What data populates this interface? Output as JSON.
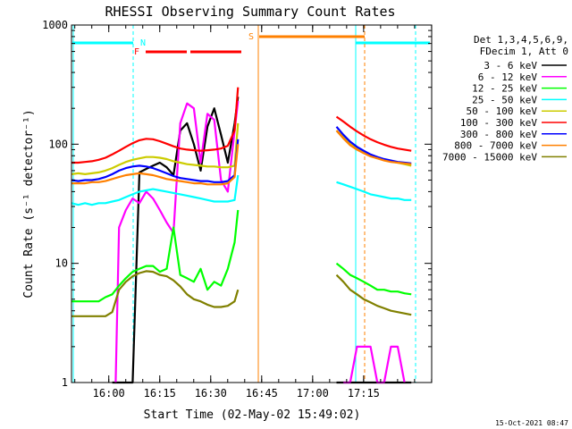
{
  "chart_data": {
    "type": "line",
    "title": "RHESSI Observing Summary Count Rates",
    "xlabel": "Start Time (02-May-02 15:49:02)",
    "ylabel": "Count Rate (s⁻¹ detector⁻¹)",
    "yscale": "log",
    "ylim": [
      1,
      1000
    ],
    "xlim_minutes_after_start": [
      0,
      106
    ],
    "x_tick_labels": [
      "16:00",
      "16:15",
      "16:30",
      "16:45",
      "17:00",
      "17:15"
    ],
    "x_ticks_minutes": [
      10.97,
      25.97,
      40.97,
      55.97,
      70.97,
      85.97
    ],
    "y_tick_labels": [
      "1",
      "10",
      "100",
      "1000"
    ],
    "y_ticks": [
      1,
      10,
      100,
      1000
    ],
    "legend": {
      "placement": "right",
      "header": [
        "Det 1,3,4,5,6,9,",
        "FDecim 1, Att 0"
      ],
      "entries": [
        {
          "label": "3 - 6 keV",
          "color": "#000000"
        },
        {
          "label": "6 - 12 keV",
          "color": "#ff00ff"
        },
        {
          "label": "12 - 25 keV",
          "color": "#00ff00"
        },
        {
          "label": "25 - 50 keV",
          "color": "#00ffff"
        },
        {
          "label": "50 - 100 keV",
          "color": "#cccc00"
        },
        {
          "label": "100 - 300 keV",
          "color": "#ff0000"
        },
        {
          "label": "300 - 800 keV",
          "color": "#0000ff"
        },
        {
          "label": "800 - 7000 keV",
          "color": "#ff8000"
        },
        {
          "label": "7000 - 15000 keV",
          "color": "#808000"
        }
      ]
    },
    "annotations": [
      {
        "text": "N",
        "color": "#00ffff"
      },
      {
        "text": "F",
        "color": "#ff0000"
      },
      {
        "text": "S",
        "color": "#ff8000"
      }
    ],
    "footer_date": "15-Oct-2021 08:47",
    "data_gaps_minutes": [
      [
        49,
        78
      ]
    ],
    "series": [
      {
        "name": "3 - 6 keV",
        "x": [
          12,
          14,
          16,
          18,
          20,
          22,
          24,
          26,
          28,
          30,
          32,
          34,
          36,
          38,
          40,
          42,
          44,
          46,
          48,
          49,
          78,
          80,
          82,
          84,
          86,
          88,
          90,
          92,
          94,
          96,
          98,
          100
        ],
        "y": [
          1,
          1,
          1,
          1,
          58,
          62,
          66,
          70,
          64,
          55,
          130,
          150,
          100,
          60,
          140,
          200,
          120,
          70,
          150,
          250,
          1,
          1,
          1,
          1,
          1,
          1,
          1,
          1,
          1,
          1,
          1,
          1
        ]
      },
      {
        "name": "6 - 12 keV",
        "x": [
          13,
          14,
          16,
          18,
          20,
          22,
          24,
          26,
          28,
          30,
          32,
          34,
          36,
          38,
          40,
          42,
          44,
          46,
          48,
          49,
          80,
          82,
          84,
          86,
          88,
          90,
          92,
          94,
          96,
          98
        ],
        "y": [
          1,
          20,
          28,
          35,
          32,
          40,
          35,
          28,
          22,
          18,
          150,
          220,
          200,
          70,
          180,
          160,
          50,
          40,
          130,
          230,
          1,
          1,
          2,
          2,
          2,
          1,
          1,
          2,
          2,
          1
        ]
      },
      {
        "name": "12 - 25 keV",
        "x": [
          0,
          2,
          4,
          6,
          8,
          10,
          12,
          14,
          16,
          18,
          20,
          22,
          24,
          26,
          28,
          30,
          32,
          34,
          36,
          38,
          40,
          42,
          44,
          46,
          48,
          49,
          78,
          80,
          82,
          84,
          86,
          88,
          90,
          92,
          94,
          96,
          98,
          100
        ],
        "y": [
          4.8,
          4.8,
          4.8,
          4.8,
          4.8,
          5.2,
          5.5,
          6.5,
          7.5,
          8.5,
          9,
          9.5,
          9.5,
          8.5,
          9,
          20,
          8,
          7.5,
          7,
          9,
          6,
          7,
          6.5,
          9,
          15,
          28,
          10,
          9,
          8,
          7.5,
          7,
          6.5,
          6,
          6,
          5.8,
          5.8,
          5.6,
          5.5
        ]
      },
      {
        "name": "25 - 50 keV",
        "x": [
          0,
          2,
          4,
          6,
          8,
          10,
          12,
          14,
          16,
          18,
          20,
          22,
          24,
          26,
          28,
          30,
          32,
          34,
          36,
          38,
          40,
          42,
          44,
          46,
          48,
          49,
          78,
          80,
          82,
          84,
          86,
          88,
          90,
          92,
          94,
          96,
          98,
          100
        ],
        "y": [
          32,
          31,
          32,
          31,
          32,
          32,
          33,
          34,
          36,
          38,
          40,
          41,
          42,
          41,
          40,
          39,
          38,
          37,
          36,
          35,
          34,
          33,
          33,
          33,
          34,
          55,
          48,
          46,
          44,
          42,
          40,
          38,
          37,
          36,
          35,
          35,
          34,
          34
        ]
      },
      {
        "name": "50 - 100 keV",
        "x": [
          0,
          2,
          4,
          6,
          8,
          10,
          12,
          14,
          16,
          18,
          20,
          22,
          24,
          26,
          28,
          30,
          32,
          34,
          36,
          38,
          40,
          42,
          44,
          46,
          48,
          49,
          78,
          80,
          82,
          84,
          86,
          88,
          90,
          92,
          94,
          96,
          98,
          100
        ],
        "y": [
          56,
          57,
          56,
          57,
          58,
          60,
          63,
          67,
          71,
          74,
          76,
          78,
          78,
          77,
          75,
          72,
          70,
          68,
          67,
          66,
          65,
          65,
          64,
          64,
          66,
          150,
          130,
          115,
          100,
          92,
          85,
          80,
          76,
          74,
          72,
          70,
          68,
          66
        ]
      },
      {
        "name": "100 - 300 keV",
        "x": [
          0,
          2,
          4,
          6,
          8,
          10,
          12,
          14,
          16,
          18,
          20,
          22,
          24,
          26,
          28,
          30,
          32,
          34,
          36,
          38,
          40,
          42,
          44,
          46,
          48,
          49,
          78,
          80,
          82,
          84,
          86,
          88,
          90,
          92,
          94,
          96,
          98,
          100
        ],
        "y": [
          70,
          70,
          71,
          72,
          74,
          77,
          82,
          88,
          95,
          102,
          108,
          111,
          110,
          106,
          101,
          96,
          92,
          90,
          89,
          88,
          89,
          90,
          92,
          97,
          130,
          300,
          170,
          155,
          140,
          128,
          118,
          110,
          104,
          99,
          95,
          92,
          90,
          88
        ]
      },
      {
        "name": "300 - 800 keV",
        "x": [
          0,
          2,
          4,
          6,
          8,
          10,
          12,
          14,
          16,
          18,
          20,
          22,
          24,
          26,
          28,
          30,
          32,
          34,
          36,
          38,
          40,
          42,
          44,
          46,
          48,
          49,
          78,
          80,
          82,
          84,
          86,
          88,
          90,
          92,
          94,
          96,
          98,
          100
        ],
        "y": [
          50,
          49,
          50,
          50,
          51,
          53,
          56,
          60,
          63,
          65,
          66,
          65,
          63,
          60,
          57,
          54,
          52,
          51,
          50,
          49,
          49,
          48,
          48,
          49,
          55,
          110,
          140,
          120,
          105,
          95,
          88,
          82,
          78,
          75,
          73,
          71,
          70,
          69
        ]
      },
      {
        "name": "800 - 7000 keV",
        "x": [
          0,
          2,
          4,
          6,
          8,
          10,
          12,
          14,
          16,
          18,
          20,
          22,
          24,
          26,
          28,
          30,
          32,
          34,
          36,
          38,
          40,
          42,
          44,
          46,
          48,
          49,
          78,
          80,
          82,
          84,
          86,
          88,
          90,
          92,
          94,
          96,
          98,
          100
        ],
        "y": [
          47,
          47,
          47,
          48,
          48,
          49,
          51,
          53,
          55,
          56,
          57,
          56,
          55,
          53,
          51,
          50,
          49,
          48,
          47,
          47,
          46,
          46,
          46,
          47,
          53,
          100,
          130,
          112,
          98,
          90,
          84,
          79,
          76,
          73,
          71,
          70,
          69,
          68
        ]
      },
      {
        "name": "7000 - 15000 keV",
        "x": [
          0,
          2,
          4,
          6,
          8,
          10,
          12,
          14,
          16,
          18,
          20,
          22,
          24,
          26,
          28,
          30,
          32,
          34,
          36,
          38,
          40,
          42,
          44,
          46,
          48,
          49,
          78,
          80,
          82,
          84,
          86,
          88,
          90,
          92,
          94,
          96,
          98,
          100
        ],
        "y": [
          3.6,
          3.6,
          3.6,
          3.6,
          3.6,
          3.6,
          3.9,
          6,
          7,
          7.8,
          8.3,
          8.6,
          8.5,
          8,
          7.8,
          7.2,
          6.4,
          5.5,
          5,
          4.8,
          4.5,
          4.3,
          4.3,
          4.4,
          4.8,
          6,
          8,
          7,
          6,
          5.5,
          5,
          4.7,
          4.4,
          4.2,
          4,
          3.9,
          3.8,
          3.7
        ]
      }
    ]
  }
}
